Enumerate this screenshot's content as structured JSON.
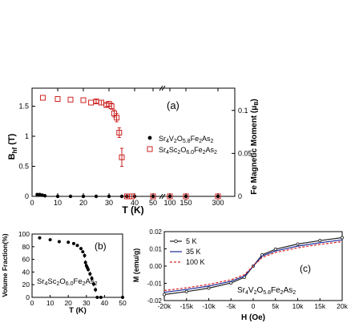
{
  "chart_data": [
    {
      "panel": "a",
      "type": "scatter",
      "panel_label": "(a)",
      "xlabel": "T (K)",
      "ylabel": "B_hf (T)",
      "y2label": "Fe Magnetic Moment (μB)",
      "x_ticks": [
        "0",
        "10",
        "20",
        "30",
        "40",
        "50",
        "100",
        "150",
        "300"
      ],
      "y_ticks": [
        "0",
        "0.5",
        "1",
        "1.5"
      ],
      "y2_ticks": [
        "0",
        "0.05",
        "0.1"
      ],
      "ylim": [
        0,
        1.8
      ],
      "x_axis_break": true,
      "legend_position": "center-right",
      "series": [
        {
          "name": "Sr4V2O5.8Fe2As2",
          "marker": "filled-circle",
          "color": "#000000",
          "x": [
            2,
            3,
            4,
            5,
            10,
            15,
            20,
            25,
            30,
            35,
            37,
            40,
            50,
            100,
            150,
            300
          ],
          "y": [
            0.03,
            0.03,
            0.02,
            0.01,
            0.0,
            0.0,
            0.0,
            0.0,
            0.0,
            0.0,
            0.0,
            0.0,
            0.0,
            0.0,
            0.0,
            0.0
          ]
        },
        {
          "name": "Sr4Sc2O6.0Fe2As2",
          "marker": "open-square",
          "color": "#cc2222",
          "x": [
            4.2,
            10,
            15,
            20,
            23,
            25,
            27,
            29,
            30,
            31,
            32,
            33,
            34,
            35,
            37,
            38,
            39,
            50,
            100,
            150,
            300
          ],
          "y": [
            1.64,
            1.62,
            1.61,
            1.6,
            1.56,
            1.58,
            1.56,
            1.52,
            1.54,
            1.5,
            1.38,
            1.31,
            1.06,
            0.65,
            0.0,
            0.0,
            0.0,
            0.0,
            0.0,
            0.0,
            0.0
          ],
          "y_err": [
            0.0,
            0.0,
            0.0,
            0.0,
            0.0,
            0.03,
            0.04,
            0.03,
            0.04,
            0.05,
            0.06,
            0.07,
            0.08,
            0.15,
            0.0,
            0.0,
            0.0,
            0.0,
            0.0,
            0.0,
            0.0
          ]
        }
      ]
    },
    {
      "panel": "b",
      "type": "scatter",
      "panel_label": "(b)",
      "annotation": "Sr4Sc2O6.0Fe2As2",
      "xlabel": "T (K)",
      "ylabel": "Volume Fraction(%)",
      "x_ticks": [
        "0",
        "10",
        "20",
        "30",
        "40",
        "50"
      ],
      "y_ticks": [
        "0",
        "20",
        "40",
        "60",
        "80",
        "100"
      ],
      "xlim": [
        0,
        50
      ],
      "ylim": [
        0,
        100
      ],
      "series": [
        {
          "marker": "filled-circle",
          "color": "#000000",
          "x": [
            4.2,
            10,
            15,
            20,
            23,
            25,
            27,
            28,
            29,
            29.5,
            30,
            30.5,
            31,
            32,
            33,
            34,
            35,
            36,
            38,
            50
          ],
          "y": [
            94,
            91,
            88,
            87,
            85,
            82,
            77,
            72,
            66,
            55,
            50,
            47,
            44,
            37,
            30,
            21,
            12,
            0,
            0,
            0
          ]
        }
      ]
    },
    {
      "panel": "c",
      "type": "line",
      "panel_label": "(c)",
      "annotation": "Sr4V2O5.8Fe2As2",
      "xlabel": "H (Oe)",
      "ylabel": "M (emu/g)",
      "x_ticks": [
        "-20k",
        "-15k",
        "-10k",
        "-5k",
        "0",
        "5k",
        "10k",
        "15k",
        "20k"
      ],
      "y_ticks": [
        "-0.02",
        "-0.01",
        "0.00",
        "0.01",
        "0.02"
      ],
      "xlim": [
        -20000,
        20000
      ],
      "ylim": [
        -0.02,
        0.02
      ],
      "legend_position": "top-left",
      "series": [
        {
          "name": "5 K",
          "color": "#222222",
          "marker": "open-circle",
          "x": [
            -20000,
            -15000,
            -10000,
            -5000,
            -2000,
            0,
            2000,
            5000,
            10000,
            15000,
            20000
          ],
          "y": [
            -0.0165,
            -0.0148,
            -0.0128,
            -0.0098,
            -0.0065,
            0.0,
            0.0065,
            0.0098,
            0.0128,
            0.0148,
            0.0165
          ]
        },
        {
          "name": "35 K",
          "color": "#1a2a9a",
          "marker": "none",
          "x": [
            -20000,
            -15000,
            -10000,
            -5000,
            -2000,
            0,
            2000,
            5000,
            10000,
            15000,
            20000
          ],
          "y": [
            -0.0152,
            -0.0136,
            -0.0116,
            -0.0088,
            -0.0058,
            0.0,
            0.0058,
            0.0088,
            0.0116,
            0.0136,
            0.0152
          ]
        },
        {
          "name": "100 K",
          "color": "#dd2222",
          "marker": "none",
          "x": [
            -20000,
            -15000,
            -10000,
            -5000,
            -2000,
            0,
            2000,
            5000,
            10000,
            15000,
            20000
          ],
          "y": [
            -0.0142,
            -0.0126,
            -0.0106,
            -0.0079,
            -0.005,
            0.0,
            0.005,
            0.0079,
            0.0106,
            0.0126,
            0.0142
          ]
        }
      ]
    }
  ]
}
